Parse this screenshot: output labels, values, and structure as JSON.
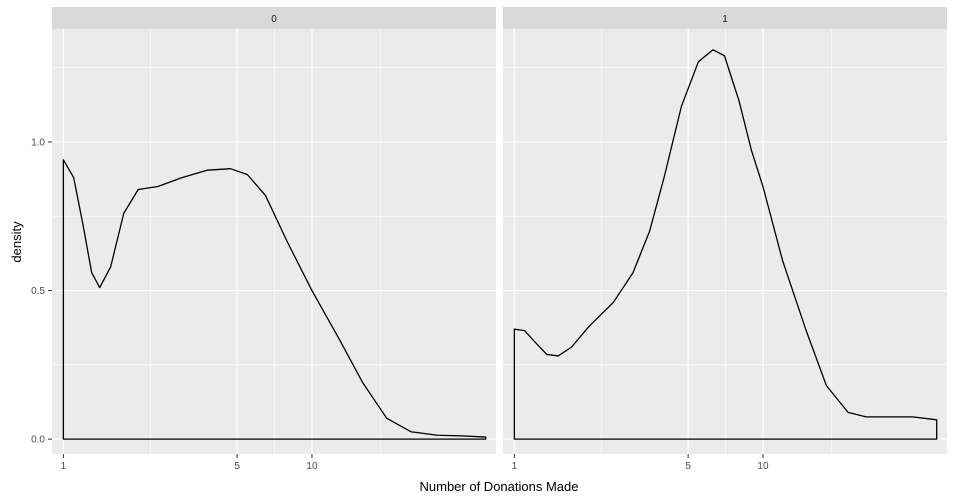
{
  "chart_data": {
    "type": "area",
    "xlabel": "Number of Donations Made",
    "ylabel": "density",
    "x_scale": "log10",
    "xlim": [
      0.9,
      55
    ],
    "ylim": [
      -0.05,
      1.38
    ],
    "x_ticks": [
      1,
      5,
      10
    ],
    "x_tick_labels": [
      "1",
      "5",
      "10"
    ],
    "y_ticks": [
      0.0,
      0.5,
      1.0
    ],
    "y_tick_labels": [
      "0.0",
      "0.5",
      "1.0"
    ],
    "grid": true,
    "legend": "none",
    "facets": [
      {
        "strip_label": "0",
        "points": [
          [
            1.0,
            0.94
          ],
          [
            1.1,
            0.88
          ],
          [
            1.2,
            0.72
          ],
          [
            1.3,
            0.56
          ],
          [
            1.4,
            0.51
          ],
          [
            1.55,
            0.58
          ],
          [
            1.75,
            0.76
          ],
          [
            2.0,
            0.84
          ],
          [
            2.4,
            0.85
          ],
          [
            3.0,
            0.88
          ],
          [
            3.8,
            0.905
          ],
          [
            4.7,
            0.91
          ],
          [
            5.5,
            0.89
          ],
          [
            6.5,
            0.82
          ],
          [
            8.0,
            0.66
          ],
          [
            10.0,
            0.5
          ],
          [
            13.0,
            0.33
          ],
          [
            16.0,
            0.19
          ],
          [
            20.0,
            0.07
          ],
          [
            25.0,
            0.025
          ],
          [
            32.0,
            0.013
          ],
          [
            40.0,
            0.011
          ],
          [
            50.0,
            0.007
          ]
        ]
      },
      {
        "strip_label": "1",
        "points": [
          [
            1.0,
            0.37
          ],
          [
            1.1,
            0.365
          ],
          [
            1.2,
            0.33
          ],
          [
            1.35,
            0.285
          ],
          [
            1.5,
            0.28
          ],
          [
            1.7,
            0.31
          ],
          [
            2.0,
            0.38
          ],
          [
            2.5,
            0.46
          ],
          [
            3.0,
            0.56
          ],
          [
            3.5,
            0.7
          ],
          [
            4.0,
            0.88
          ],
          [
            4.7,
            1.12
          ],
          [
            5.5,
            1.27
          ],
          [
            6.3,
            1.31
          ],
          [
            7.0,
            1.29
          ],
          [
            8.0,
            1.14
          ],
          [
            9.0,
            0.97
          ],
          [
            10.0,
            0.85
          ],
          [
            12.0,
            0.6
          ],
          [
            15.0,
            0.36
          ],
          [
            18.0,
            0.18
          ],
          [
            22.0,
            0.09
          ],
          [
            26.0,
            0.075
          ],
          [
            32.0,
            0.075
          ],
          [
            40.0,
            0.075
          ],
          [
            50.0,
            0.065
          ]
        ]
      }
    ]
  }
}
